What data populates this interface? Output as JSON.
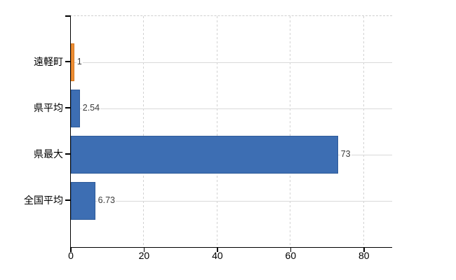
{
  "chart_data": {
    "type": "bar",
    "orientation": "horizontal",
    "title": "",
    "xlabel": "",
    "ylabel": "",
    "legend": false,
    "categories": [
      "遠軽町",
      "県平均",
      "県最大",
      "全国平均"
    ],
    "values": [
      1,
      2.54,
      73,
      6.73
    ],
    "value_labels": [
      "1",
      "2.54",
      "73",
      "6.73"
    ],
    "bar_fill_colors": [
      "#ee8f35",
      "#3d6eb3",
      "#3d6eb3",
      "#3d6eb3"
    ],
    "bar_border_colors": [
      "#d2751f",
      "#2e5a99",
      "#2e5a99",
      "#2e5a99"
    ],
    "x_ticks": [
      0,
      20,
      40,
      60,
      80
    ],
    "x_tick_labels": [
      "0",
      "20",
      "40",
      "60",
      "80"
    ],
    "xlim": [
      0,
      87.7
    ],
    "grid": {
      "vertical": "dashed",
      "horizontal": "solid",
      "top_border": "dashed"
    }
  },
  "style": {
    "axis_color": "#000000",
    "grid_color_solid": "#d9d9d9",
    "grid_color_dashed": "#d2d2d2",
    "value_label_color": "#3b3b3b",
    "text_color": "#000000",
    "background_color": "#ffffff"
  }
}
